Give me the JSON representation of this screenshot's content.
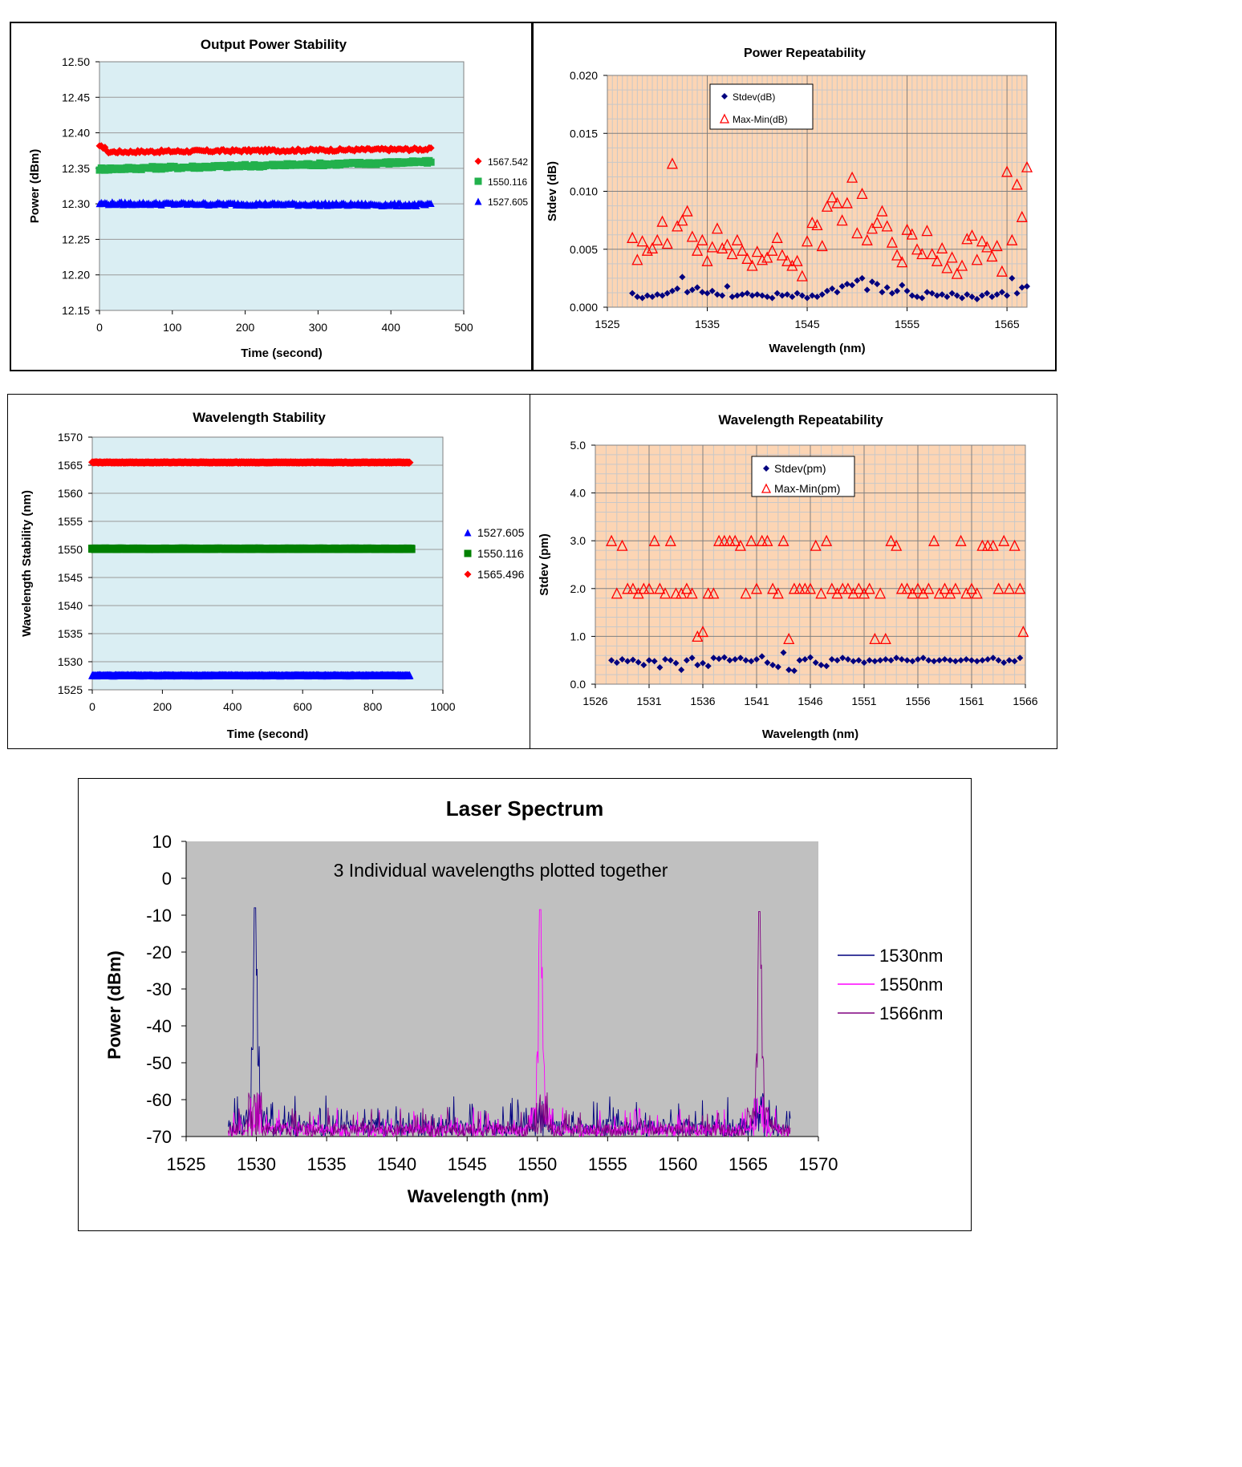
{
  "charts": [
    {
      "id": "output-power-stability",
      "type": "scatter",
      "title": "Output Power Stability",
      "xlabel": "Time (second)",
      "ylabel": "Power (dBm)",
      "xlim": [
        0,
        500
      ],
      "ylim": [
        12.15,
        12.5
      ],
      "xticks": [
        0,
        100,
        200,
        300,
        400,
        500
      ],
      "yticks": [
        12.15,
        12.2,
        12.25,
        12.3,
        12.35,
        12.4,
        12.45,
        12.5
      ],
      "ytick_decimals": 2,
      "grid": "horizontal",
      "legend": "right",
      "series": [
        {
          "name": "1567.542",
          "color": "#ff0000",
          "marker": "diamond",
          "x_range": [
            0,
            455
          ],
          "y": 12.373,
          "y_end": 12.377,
          "y_start_bump": 12.38
        },
        {
          "name": "1550.116",
          "color": "#22b14c",
          "marker": "square",
          "x_range": [
            0,
            455
          ],
          "y": 12.349,
          "y_end": 12.359
        },
        {
          "name": "1527.605",
          "color": "#0000ff",
          "marker": "triangle",
          "x_range": [
            0,
            455
          ],
          "y": 12.301,
          "y_end": 12.299
        }
      ]
    },
    {
      "id": "power-repeatability",
      "type": "scatter",
      "title": "Power Repeatability",
      "xlabel": "Wavelength (nm)",
      "ylabel": "Stdev (dB)",
      "xlim": [
        1525,
        1567
      ],
      "ylim": [
        0,
        0.02
      ],
      "xticks": [
        1525,
        1535,
        1545,
        1555,
        1565
      ],
      "yticks": [
        0.0,
        0.005,
        0.01,
        0.015,
        0.02
      ],
      "ytick_decimals": 3,
      "grid": "both",
      "legend": "top-left",
      "series": [
        {
          "name": "Stdev(dB)",
          "color": "#00007f",
          "marker": "diamond",
          "x": [
            1527.5,
            1528,
            1528.5,
            1529,
            1529.5,
            1530,
            1530.5,
            1531,
            1531.5,
            1532,
            1532.5,
            1533,
            1533.5,
            1534,
            1534.5,
            1535,
            1535.5,
            1536,
            1536.5,
            1537,
            1537.5,
            1538,
            1538.5,
            1539,
            1539.5,
            1540,
            1540.5,
            1541,
            1541.5,
            1542,
            1542.5,
            1543,
            1543.5,
            1544,
            1544.5,
            1545,
            1545.5,
            1546,
            1546.5,
            1547,
            1547.5,
            1548,
            1548.5,
            1549,
            1549.5,
            1550,
            1550.5,
            1551,
            1551.5,
            1552,
            1552.5,
            1553,
            1553.5,
            1554,
            1554.5,
            1555,
            1555.5,
            1556,
            1556.5,
            1557,
            1557.5,
            1558,
            1558.5,
            1559,
            1559.5,
            1560,
            1560.5,
            1561,
            1561.5,
            1562,
            1562.5,
            1563,
            1563.5,
            1564,
            1564.5,
            1565,
            1565.5,
            1566,
            1566.5,
            1567
          ],
          "y": [
            0.0012,
            0.0009,
            0.0008,
            0.001,
            0.0009,
            0.0011,
            0.001,
            0.0012,
            0.0014,
            0.0016,
            0.0026,
            0.0013,
            0.0015,
            0.0017,
            0.0013,
            0.0012,
            0.0014,
            0.0011,
            0.001,
            0.0018,
            0.0009,
            0.001,
            0.0011,
            0.0012,
            0.001,
            0.0011,
            0.001,
            0.0009,
            0.0008,
            0.0012,
            0.001,
            0.0011,
            0.0009,
            0.0012,
            0.001,
            0.0008,
            0.001,
            0.0009,
            0.0011,
            0.0014,
            0.0016,
            0.0013,
            0.0018,
            0.002,
            0.0019,
            0.0023,
            0.0025,
            0.0015,
            0.0022,
            0.002,
            0.0013,
            0.0017,
            0.0012,
            0.0014,
            0.0019,
            0.0014,
            0.001,
            0.0009,
            0.0008,
            0.0013,
            0.0012,
            0.001,
            0.0011,
            0.0009,
            0.0012,
            0.001,
            0.0008,
            0.0011,
            0.0009,
            0.0007,
            0.001,
            0.0012,
            0.0009,
            0.0011,
            0.0013,
            0.001,
            0.0025,
            0.0012,
            0.0017,
            0.0018
          ]
        },
        {
          "name": "Max-Min(dB)",
          "color": "#ff0000",
          "marker": "triangle-open",
          "x": [
            1527.5,
            1528,
            1528.5,
            1529,
            1529.5,
            1530,
            1530.5,
            1531,
            1531.5,
            1532,
            1532.5,
            1533,
            1533.5,
            1534,
            1534.5,
            1535,
            1535.5,
            1536,
            1536.5,
            1537,
            1537.5,
            1538,
            1538.5,
            1539,
            1539.5,
            1540,
            1540.5,
            1541,
            1541.5,
            1542,
            1542.5,
            1543,
            1543.5,
            1544,
            1544.5,
            1545,
            1545.5,
            1546,
            1546.5,
            1547,
            1547.5,
            1548,
            1548.5,
            1549,
            1549.5,
            1550,
            1550.5,
            1551,
            1551.5,
            1552,
            1552.5,
            1553,
            1553.5,
            1554,
            1554.5,
            1555,
            1555.5,
            1556,
            1556.5,
            1557,
            1557.5,
            1558,
            1558.5,
            1559,
            1559.5,
            1560,
            1560.5,
            1561,
            1561.5,
            1562,
            1562.5,
            1563,
            1563.5,
            1564,
            1564.5,
            1565,
            1565.5,
            1566,
            1566.5,
            1567
          ],
          "y": [
            0.006,
            0.0041,
            0.0057,
            0.0049,
            0.0051,
            0.0058,
            0.0074,
            0.0055,
            0.0124,
            0.007,
            0.0075,
            0.0083,
            0.0061,
            0.0049,
            0.0058,
            0.004,
            0.0052,
            0.0068,
            0.0051,
            0.0054,
            0.0046,
            0.0058,
            0.0049,
            0.0042,
            0.0036,
            0.0048,
            0.0041,
            0.0043,
            0.0049,
            0.006,
            0.0045,
            0.004,
            0.0036,
            0.004,
            0.0027,
            0.0057,
            0.0073,
            0.0071,
            0.0053,
            0.0087,
            0.0095,
            0.009,
            0.0075,
            0.009,
            0.0112,
            0.0064,
            0.0098,
            0.0058,
            0.0068,
            0.0073,
            0.0083,
            0.007,
            0.0056,
            0.0045,
            0.0039,
            0.0067,
            0.0063,
            0.005,
            0.0046,
            0.0066,
            0.0046,
            0.004,
            0.0051,
            0.0034,
            0.0043,
            0.0029,
            0.0036,
            0.0059,
            0.0062,
            0.0041,
            0.0057,
            0.0052,
            0.0044,
            0.0053,
            0.0031,
            0.0117,
            0.0058,
            0.0106,
            0.0078,
            0.0121
          ]
        }
      ]
    },
    {
      "id": "wavelength-stability",
      "type": "scatter",
      "title": "Wavelength Stability",
      "xlabel": "Time (second)",
      "ylabel": "Wavelength Stability (nm)",
      "xlim": [
        0,
        1000
      ],
      "ylim": [
        1525,
        1570
      ],
      "xticks": [
        0,
        200,
        400,
        600,
        800,
        1000
      ],
      "yticks": [
        1525,
        1530,
        1535,
        1540,
        1545,
        1550,
        1555,
        1560,
        1565,
        1570
      ],
      "ytick_decimals": 0,
      "grid": "horizontal",
      "legend": "right",
      "series": [
        {
          "name": "1527.605",
          "color": "#0000ff",
          "marker": "triangle",
          "x_range": [
            0,
            905
          ],
          "y": 1527.605
        },
        {
          "name": "1550.116",
          "color": "#008000",
          "marker": "square",
          "x_range": [
            0,
            910
          ],
          "y": 1550.116
        },
        {
          "name": "1565.496",
          "color": "#ff0000",
          "marker": "diamond",
          "x_range": [
            0,
            905
          ],
          "y": 1565.496
        }
      ]
    },
    {
      "id": "wavelength-repeatability",
      "type": "scatter",
      "title": "Wavelength Repeatability",
      "xlabel": "Wavelength (nm)",
      "ylabel": "Stdev (pm)",
      "xlim": [
        1526,
        1566
      ],
      "ylim": [
        0,
        5
      ],
      "xticks": [
        1526,
        1531,
        1536,
        1541,
        1546,
        1551,
        1556,
        1561,
        1566
      ],
      "yticks": [
        0.0,
        1.0,
        2.0,
        3.0,
        4.0,
        5.0
      ],
      "ytick_decimals": 1,
      "grid": "both",
      "legend": "top-left",
      "series": [
        {
          "name": "Stdev(pm)",
          "color": "#00007f",
          "marker": "diamond",
          "x": [
            1527.5,
            1528,
            1528.5,
            1529,
            1529.5,
            1530,
            1530.5,
            1531,
            1531.5,
            1532,
            1532.5,
            1533,
            1533.5,
            1534,
            1534.5,
            1535,
            1535.5,
            1536,
            1536.5,
            1537,
            1537.5,
            1538,
            1538.5,
            1539,
            1539.5,
            1540,
            1540.5,
            1541,
            1541.5,
            1542,
            1542.5,
            1543,
            1543.5,
            1544,
            1544.5,
            1545,
            1545.5,
            1546,
            1546.5,
            1547,
            1547.5,
            1548,
            1548.5,
            1549,
            1549.5,
            1550,
            1550.5,
            1551,
            1551.5,
            1552,
            1552.5,
            1553,
            1553.5,
            1554,
            1554.5,
            1555,
            1555.5,
            1556,
            1556.5,
            1557,
            1557.5,
            1558,
            1558.5,
            1559,
            1559.5,
            1560,
            1560.5,
            1561,
            1561.5,
            1562,
            1562.5,
            1563,
            1563.5,
            1564,
            1564.5,
            1565,
            1565.5
          ],
          "y": [
            0.5,
            0.45,
            0.52,
            0.48,
            0.51,
            0.46,
            0.4,
            0.5,
            0.48,
            0.35,
            0.52,
            0.5,
            0.44,
            0.3,
            0.5,
            0.55,
            0.4,
            0.44,
            0.38,
            0.55,
            0.53,
            0.56,
            0.5,
            0.52,
            0.55,
            0.5,
            0.48,
            0.52,
            0.58,
            0.45,
            0.4,
            0.36,
            0.66,
            0.3,
            0.28,
            0.5,
            0.52,
            0.56,
            0.45,
            0.4,
            0.38,
            0.52,
            0.5,
            0.55,
            0.52,
            0.48,
            0.5,
            0.45,
            0.5,
            0.48,
            0.5,
            0.52,
            0.5,
            0.55,
            0.52,
            0.5,
            0.48,
            0.52,
            0.55,
            0.5,
            0.48,
            0.5,
            0.52,
            0.5,
            0.48,
            0.5,
            0.52,
            0.5,
            0.48,
            0.5,
            0.52,
            0.55,
            0.5,
            0.45,
            0.5,
            0.48,
            0.55
          ]
        },
        {
          "name": "Max-Min(pm)",
          "color": "#ff0000",
          "marker": "triangle-open",
          "x": [
            1527.5,
            1528,
            1528.5,
            1529,
            1529.5,
            1530,
            1530.5,
            1531,
            1531.5,
            1532,
            1532.5,
            1533,
            1533.5,
            1534,
            1534.5,
            1535,
            1535.5,
            1536,
            1536.5,
            1537,
            1537.5,
            1538,
            1538.5,
            1539,
            1539.5,
            1540,
            1540.5,
            1541,
            1541.5,
            1542,
            1542.5,
            1543,
            1543.5,
            1544,
            1544.5,
            1545,
            1545.5,
            1546,
            1546.5,
            1547,
            1547.5,
            1548,
            1548.5,
            1549,
            1549.5,
            1550,
            1550.5,
            1551,
            1551.5,
            1552,
            1552.5,
            1553,
            1553.5,
            1554,
            1554.5,
            1555,
            1555.5,
            1556,
            1556.5,
            1557,
            1557.5,
            1558,
            1558.5,
            1559,
            1559.5,
            1560,
            1560.5,
            1561,
            1561.5,
            1562,
            1562.5,
            1563,
            1563.5,
            1564,
            1564.5,
            1565,
            1565.5,
            1565.8
          ],
          "y": [
            3.0,
            1.9,
            2.9,
            2.0,
            2.0,
            1.9,
            2.0,
            2.0,
            3.0,
            2.0,
            1.9,
            3.0,
            1.9,
            1.9,
            2.0,
            1.9,
            1.0,
            1.1,
            1.9,
            1.9,
            3.0,
            3.0,
            3.0,
            3.0,
            2.9,
            1.9,
            3.0,
            2.0,
            3.0,
            3.0,
            2.0,
            1.9,
            3.0,
            0.95,
            2.0,
            2.0,
            2.0,
            2.0,
            2.9,
            1.9,
            3.0,
            2.0,
            1.9,
            2.0,
            2.0,
            1.9,
            2.0,
            1.9,
            2.0,
            0.95,
            1.9,
            0.95,
            3.0,
            2.9,
            2.0,
            2.0,
            1.9,
            2.0,
            1.9,
            2.0,
            3.0,
            1.9,
            2.0,
            1.9,
            2.0,
            3.0,
            1.9,
            2.0,
            1.9,
            2.9,
            2.9,
            2.9,
            2.0,
            3.0,
            2.0,
            2.9,
            2.0,
            1.1
          ]
        }
      ]
    }
  ],
  "spectrum": {
    "id": "laser-spectrum",
    "type": "line",
    "title": "Laser Spectrum",
    "annotation": "3 Individual wavelengths plotted together",
    "xlabel": "Wavelength (nm)",
    "ylabel": "Power (dBm)",
    "xlim": [
      1525,
      1570
    ],
    "ylim": [
      -70,
      10
    ],
    "xticks": [
      1525,
      1530,
      1535,
      1540,
      1545,
      1550,
      1555,
      1560,
      1565,
      1570
    ],
    "yticks": [
      -70,
      -60,
      -50,
      -40,
      -30,
      -20,
      -10,
      0,
      10
    ],
    "noise_range": [
      1528,
      1568
    ],
    "noise_floor": -70,
    "series": [
      {
        "name": "1530nm",
        "color": "#00007f",
        "peak": 1529.9,
        "peak_power": -8,
        "noise_max": 7
      },
      {
        "name": "1550nm",
        "color": "#ff00ff",
        "peak": 1550.2,
        "peak_power": -8.5,
        "noise_max": 5
      },
      {
        "name": "1566nm",
        "color": "#800080",
        "peak": 1565.8,
        "peak_power": -9,
        "noise_max": 5
      }
    ]
  }
}
